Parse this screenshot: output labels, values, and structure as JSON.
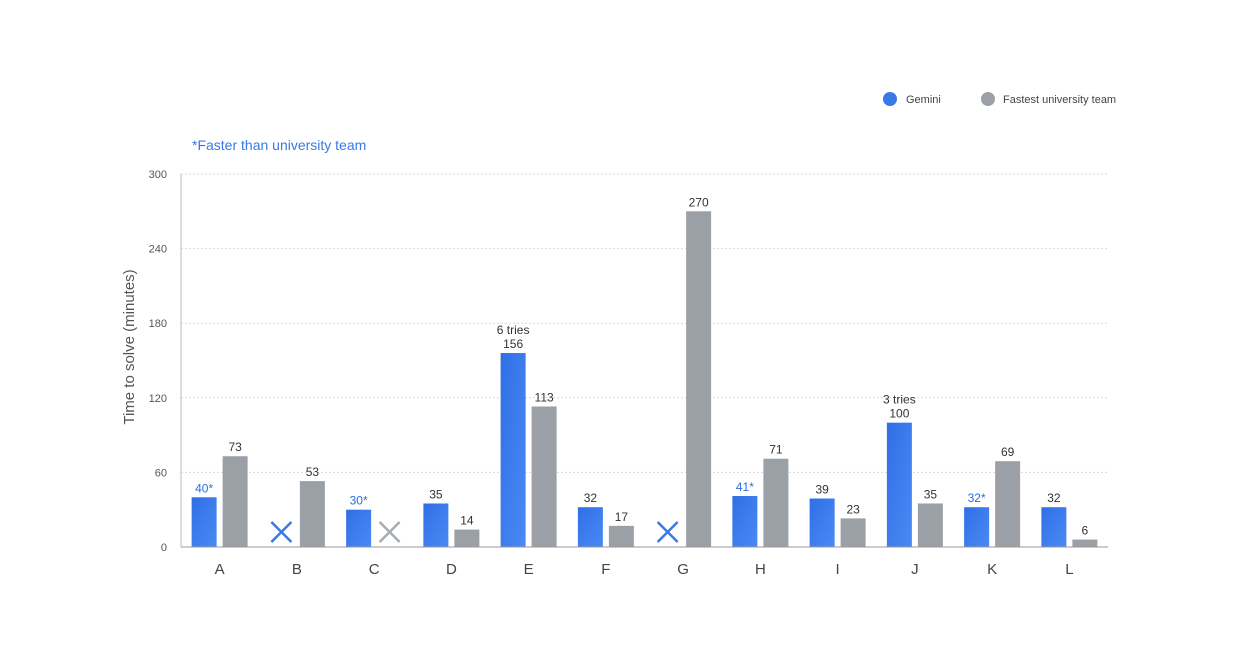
{
  "chart_data": {
    "type": "bar",
    "note": "*Faster than university team",
    "ylabel": "Time to solve (minutes)",
    "ylim": [
      0,
      300
    ],
    "yticks": [
      0,
      60,
      120,
      180,
      240,
      300
    ],
    "grid": true,
    "legend_position": "top-right",
    "categories": [
      "A",
      "B",
      "C",
      "D",
      "E",
      "F",
      "G",
      "H",
      "I",
      "J",
      "K",
      "L"
    ],
    "series": [
      {
        "name": "Gemini",
        "color": "#3b78e7",
        "values": [
          40,
          null,
          30,
          35,
          156,
          32,
          null,
          41,
          39,
          100,
          32,
          32
        ],
        "labels": [
          "40*",
          "",
          "30*",
          "35",
          "156",
          "32",
          "",
          "41*",
          "39",
          "100",
          "32*",
          "32"
        ],
        "faster_than_university": [
          true,
          false,
          true,
          false,
          false,
          false,
          false,
          true,
          false,
          false,
          true,
          false
        ],
        "unsolved": [
          false,
          true,
          false,
          false,
          false,
          false,
          true,
          false,
          false,
          false,
          false,
          false
        ],
        "tries_labels": [
          "",
          "",
          "",
          "",
          "6 tries",
          "",
          "",
          "",
          "",
          "3 tries",
          "",
          ""
        ]
      },
      {
        "name": "Fastest university team",
        "color": "#9aa0a6",
        "values": [
          73,
          53,
          null,
          14,
          113,
          17,
          270,
          71,
          23,
          35,
          69,
          6
        ],
        "labels": [
          "73",
          "53",
          "",
          "14",
          "113",
          "17",
          "270",
          "71",
          "23",
          "35",
          "69",
          "6"
        ],
        "unsolved": [
          false,
          false,
          true,
          false,
          false,
          false,
          false,
          false,
          false,
          false,
          false,
          false
        ]
      }
    ],
    "unsolved_marker": "x-icon"
  }
}
